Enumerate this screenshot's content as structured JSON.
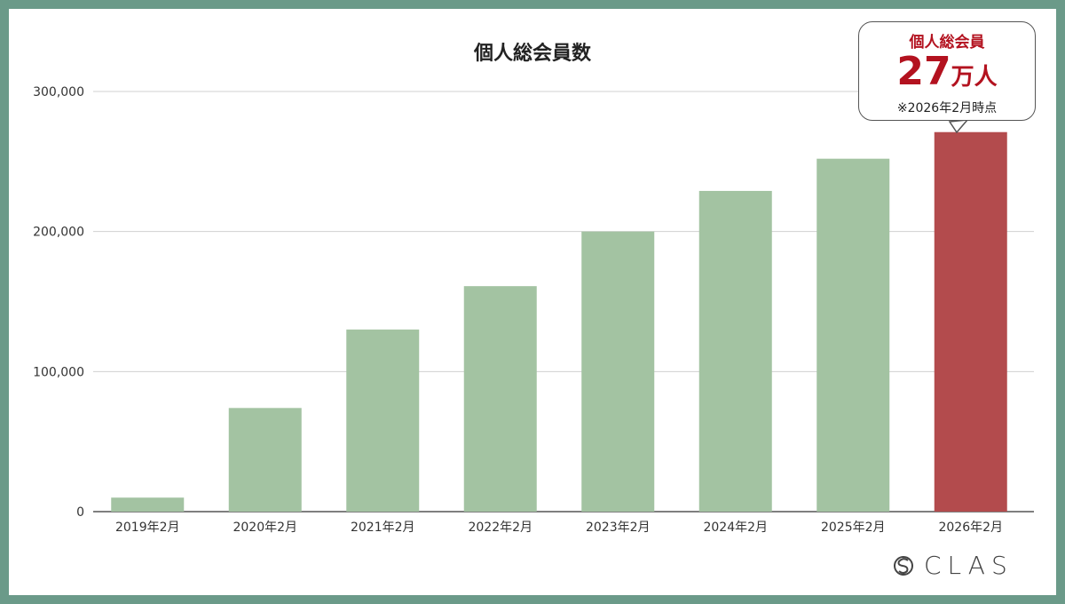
{
  "chart_data": {
    "type": "bar",
    "title": "個人総会員数",
    "categories": [
      "2019年2月",
      "2020年2月",
      "2021年2月",
      "2022年2月",
      "2023年2月",
      "2024年2月",
      "2025年2月",
      "2026年2月"
    ],
    "values": [
      10000,
      74000,
      130000,
      161000,
      200000,
      229000,
      252000,
      271000
    ],
    "ylim": [
      0,
      300000
    ],
    "yticks": [
      "0",
      "100,000",
      "200,000",
      "300,000"
    ],
    "ytick_values": [
      0,
      100000,
      200000,
      300000
    ],
    "grid": true,
    "colors": {
      "bar": "#a3c3a2",
      "highlight": "#b34b4d",
      "frame": "#6b9a89"
    },
    "highlight_index": 7
  },
  "callout": {
    "title": "個人総会員",
    "number": "27",
    "unit": "万人",
    "note": "※2026年2月時点"
  },
  "logo": {
    "text": "CLAS",
    "icon": "clas-logo-icon"
  }
}
